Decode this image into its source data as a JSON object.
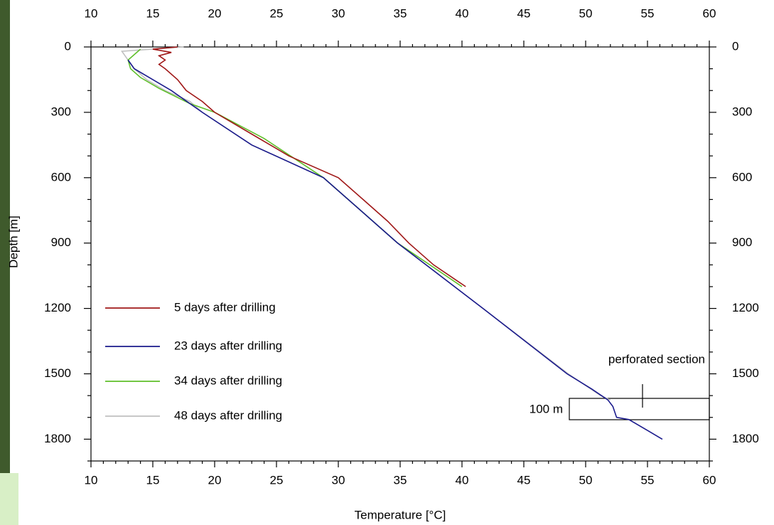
{
  "chart_data": {
    "type": "line",
    "xlabel": "Temperature [°C]",
    "ylabel": "Depth [m]",
    "xlim": [
      10,
      60
    ],
    "xticks": [
      10,
      15,
      20,
      25,
      30,
      35,
      40,
      45,
      50,
      55,
      60
    ],
    "ylim": [
      0,
      1900
    ],
    "yticks": [
      0,
      300,
      600,
      900,
      1200,
      1500,
      1800
    ],
    "y_reversed": true,
    "grid": false,
    "legend": "lower left",
    "annotations": [
      "perforated section",
      "100 m"
    ],
    "series": [
      {
        "name": "5 days after drilling",
        "color": "#a01818",
        "x": [
          17,
          15,
          16.5,
          15.5,
          16,
          15.5,
          16,
          17,
          17.7,
          19,
          20,
          21.5,
          23,
          24.5,
          26,
          30,
          32,
          34,
          35.7,
          37.7,
          40.3
        ],
        "values": [
          0,
          10,
          25,
          40,
          60,
          80,
          100,
          150,
          200,
          250,
          300,
          350,
          400,
          450,
          500,
          600,
          700,
          800,
          900,
          1000,
          1100
        ]
      },
      {
        "name": "23 days after drilling",
        "color": "#1a1a8c",
        "x": [
          13,
          13.5,
          15,
          16.5,
          19,
          23,
          28.8,
          34.8,
          41.7,
          48.5,
          50.5,
          51.8,
          52.2,
          52.5,
          53.5,
          55,
          56.2
        ],
        "values": [
          60,
          100,
          150,
          200,
          300,
          450,
          600,
          900,
          1200,
          1500,
          1570,
          1620,
          1650,
          1700,
          1710,
          1760,
          1800
        ]
      },
      {
        "name": "34 days after drilling",
        "color": "#5fbf2a",
        "x": [
          14,
          13,
          13.2,
          14,
          15.5,
          18,
          20,
          22,
          24,
          28.8,
          34.8,
          40
        ],
        "values": [
          10,
          60,
          100,
          140,
          190,
          260,
          300,
          360,
          420,
          600,
          900,
          1100
        ]
      },
      {
        "name": "48 days after drilling",
        "color": "#c0c0c0",
        "x": [
          17.5,
          12.5,
          13,
          13.5,
          14.5,
          16,
          18,
          19,
          23,
          28.8,
          34.8,
          41.7,
          48.6,
          51.2,
          52
        ],
        "values": [
          0,
          20,
          60,
          100,
          150,
          200,
          250,
          300,
          450,
          600,
          900,
          1200,
          1500,
          1600,
          1620
        ]
      }
    ]
  }
}
